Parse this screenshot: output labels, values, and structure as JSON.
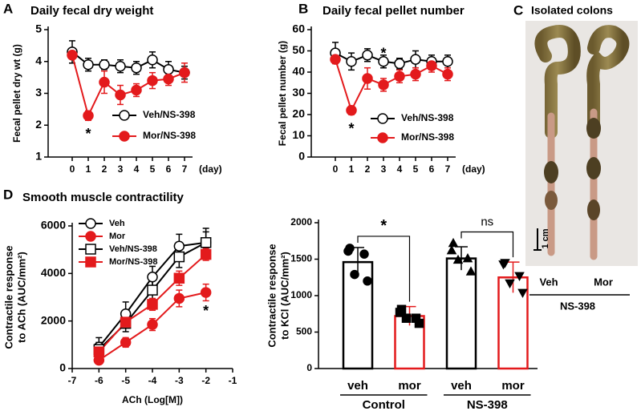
{
  "chart_data": [
    {
      "type": "line",
      "panel": "A",
      "title": "Daily fecal dry weight",
      "ylabel": "Fecal pellet dry wt (g)",
      "xlabel": "(day)",
      "x": [
        0,
        1,
        2,
        3,
        4,
        5,
        6,
        7
      ],
      "xlim": [
        -1.5,
        7.5
      ],
      "xticks": [
        0,
        1,
        2,
        3,
        4,
        5,
        6,
        7
      ],
      "ylim": [
        1,
        5
      ],
      "yticks": [
        1,
        2,
        3,
        4,
        5
      ],
      "series": [
        {
          "name": "Veh/NS-398",
          "color": "#000000",
          "fill": "#ffffff",
          "marker": "circle",
          "values": [
            4.3,
            3.9,
            3.9,
            3.85,
            3.8,
            4.05,
            3.75,
            3.65
          ],
          "errors": [
            0.35,
            0.2,
            0.15,
            0.2,
            0.2,
            0.25,
            0.25,
            0.2
          ]
        },
        {
          "name": "Mor/NS-398",
          "color": "#e31a1c",
          "fill": "#e31a1c",
          "marker": "circle",
          "values": [
            4.2,
            2.3,
            3.35,
            2.95,
            3.1,
            3.4,
            3.45,
            3.65
          ],
          "errors": [
            0.1,
            0.15,
            0.35,
            0.3,
            0.2,
            0.25,
            0.2,
            0.3
          ]
        }
      ],
      "annotations": [
        {
          "text": "*",
          "x": 1,
          "series": 1,
          "position": "below"
        }
      ]
    },
    {
      "type": "line",
      "panel": "B",
      "title": "Daily fecal pellet number",
      "ylabel": "Fecal pellet number (g)",
      "xlabel": "(day)",
      "x": [
        0,
        1,
        2,
        3,
        4,
        5,
        6,
        7
      ],
      "xlim": [
        -1.5,
        7.5
      ],
      "xticks": [
        0,
        1,
        2,
        3,
        4,
        5,
        6,
        7
      ],
      "ylim": [
        0,
        60
      ],
      "yticks": [
        0,
        10,
        20,
        30,
        40,
        50,
        60
      ],
      "series": [
        {
          "name": "Veh/NS-398",
          "color": "#000000",
          "fill": "#ffffff",
          "marker": "circle",
          "values": [
            49,
            45,
            48,
            45,
            44,
            46,
            45,
            45
          ],
          "errors": [
            5,
            4,
            3,
            3,
            2.5,
            4,
            3,
            3
          ]
        },
        {
          "name": "Mor/NS-398",
          "color": "#e31a1c",
          "fill": "#e31a1c",
          "marker": "circle",
          "values": [
            46,
            22,
            37,
            34,
            38,
            39,
            43,
            39
          ],
          "errors": [
            2,
            2,
            5,
            3,
            3,
            3,
            3,
            3
          ]
        }
      ],
      "annotations": [
        {
          "text": "*",
          "x": 1,
          "series": 1,
          "position": "below"
        },
        {
          "text": "*",
          "x": 3,
          "series": 1,
          "position": "above"
        }
      ]
    },
    {
      "type": "line",
      "panel": "D",
      "title": "Smooth muscle contractility",
      "ylabel": [
        "Contractile response",
        "to ACh (AUC/mm²)"
      ],
      "xlabel": "ACh (Log[M])",
      "x": [
        -6,
        -5,
        -4,
        -3,
        -2
      ],
      "xlim": [
        -7,
        -1
      ],
      "xticks": [
        -7,
        -6,
        -5,
        -4,
        -3,
        -2,
        -1
      ],
      "ylim": [
        0,
        6000
      ],
      "yticks": [
        0,
        2000,
        4000,
        6000
      ],
      "series": [
        {
          "name": "Veh",
          "color": "#000000",
          "fill": "#ffffff",
          "marker": "circle",
          "values": [
            900,
            2300,
            3850,
            5150,
            5300
          ],
          "errors": [
            400,
            500,
            450,
            500,
            600
          ]
        },
        {
          "name": "Mor",
          "color": "#e31a1c",
          "fill": "#e31a1c",
          "marker": "circle",
          "values": [
            350,
            1100,
            1850,
            2950,
            3200
          ],
          "errors": [
            150,
            200,
            250,
            350,
            350
          ]
        },
        {
          "name": "Veh/NS-398",
          "color": "#000000",
          "fill": "#ffffff",
          "marker": "square",
          "values": [
            800,
            1900,
            3300,
            4700,
            5300
          ],
          "errors": [
            300,
            350,
            400,
            450,
            450
          ]
        },
        {
          "name": "Mor/NS-398",
          "color": "#e31a1c",
          "fill": "#e31a1c",
          "marker": "square",
          "values": [
            700,
            1950,
            2700,
            3800,
            4800
          ],
          "errors": [
            200,
            250,
            250,
            300,
            250
          ]
        }
      ],
      "annotations": [
        {
          "text": "*",
          "x": -2,
          "series": 1,
          "position": "below"
        }
      ]
    },
    {
      "type": "bar",
      "ylabel": [
        "Contractile response",
        "to KCl (AUC/mm²)"
      ],
      "categories": [
        "veh",
        "mor",
        "veh",
        "mor"
      ],
      "values": [
        1460,
        720,
        1510,
        1250
      ],
      "errors": [
        200,
        130,
        160,
        210
      ],
      "colors": [
        "#000000",
        "#e31a1c",
        "#000000",
        "#e31a1c"
      ],
      "markers": [
        "circle",
        "square",
        "triangle",
        "triangle-down"
      ],
      "points": [
        [
          1650,
          1570,
          1290,
          1200,
          1610
        ],
        [
          810,
          690,
          690,
          620,
          770
        ],
        [
          1720,
          1510,
          1490,
          1330,
          1620
        ],
        [
          1450,
          1270,
          1170,
          1040,
          1430
        ]
      ],
      "ylim": [
        0,
        2000
      ],
      "yticks": [
        0,
        500,
        1000,
        1500,
        2000
      ],
      "groups": [
        {
          "label": "Control",
          "span": [
            0,
            1
          ]
        },
        {
          "label": "NS-398",
          "span": [
            2,
            3
          ]
        }
      ],
      "comparisons": [
        {
          "pair": [
            0,
            1
          ],
          "label": "*"
        },
        {
          "pair": [
            2,
            3
          ],
          "label": "ns"
        }
      ]
    }
  ],
  "photo": {
    "panel": "C",
    "title": "Isolated colons",
    "scale_label": "1 cm",
    "labels": [
      "Veh",
      "Mor"
    ],
    "group_label": "NS-398"
  }
}
